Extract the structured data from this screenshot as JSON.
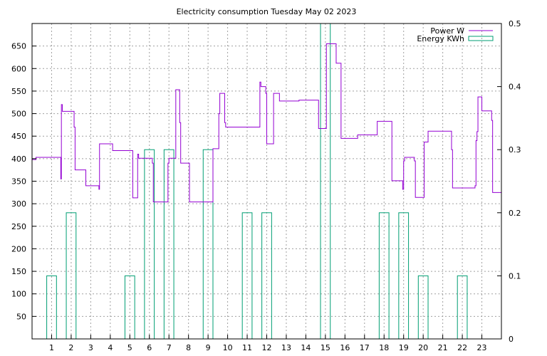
{
  "chart_data": {
    "type": "line",
    "title": "Electricity consumption Tuesday May 02 2023",
    "xlabel": "",
    "ylabel": "",
    "y2label": "",
    "xlim": [
      0,
      24
    ],
    "ylim": [
      0,
      700
    ],
    "y2lim": [
      0,
      0.5
    ],
    "grid": true,
    "legend_position": "top-right",
    "x_ticks": [
      1,
      2,
      3,
      4,
      5,
      6,
      7,
      8,
      9,
      10,
      11,
      12,
      13,
      14,
      15,
      16,
      17,
      18,
      19,
      20,
      21,
      22,
      23
    ],
    "y_ticks": [
      50,
      100,
      150,
      200,
      250,
      300,
      350,
      400,
      450,
      500,
      550,
      600,
      650
    ],
    "y2_ticks": [
      0,
      0.1,
      0.2,
      0.3,
      0.4,
      0.5
    ],
    "series": [
      {
        "name": "Power W",
        "axis": "left",
        "color": "#9400d3",
        "style": "step",
        "points": [
          [
            0,
            398
          ],
          [
            0.2,
            403
          ],
          [
            1.45,
            403
          ],
          [
            1.47,
            355
          ],
          [
            1.5,
            520
          ],
          [
            1.55,
            505
          ],
          [
            2.1,
            505
          ],
          [
            2.15,
            470
          ],
          [
            2.2,
            375
          ],
          [
            2.7,
            375
          ],
          [
            2.75,
            340
          ],
          [
            3.4,
            340
          ],
          [
            3.42,
            332
          ],
          [
            3.45,
            433
          ],
          [
            4.1,
            433
          ],
          [
            4.12,
            418
          ],
          [
            5.1,
            418
          ],
          [
            5.15,
            313
          ],
          [
            5.35,
            313
          ],
          [
            5.4,
            410
          ],
          [
            5.45,
            401
          ],
          [
            6.1,
            401
          ],
          [
            6.15,
            390
          ],
          [
            6.2,
            304
          ],
          [
            6.9,
            304
          ],
          [
            6.95,
            390
          ],
          [
            7.0,
            401
          ],
          [
            7.3,
            401
          ],
          [
            7.35,
            553
          ],
          [
            7.5,
            553
          ],
          [
            7.55,
            480
          ],
          [
            7.6,
            390
          ],
          [
            8.0,
            390
          ],
          [
            8.05,
            304
          ],
          [
            9.2,
            304
          ],
          [
            9.25,
            422
          ],
          [
            9.5,
            422
          ],
          [
            9.55,
            500
          ],
          [
            9.6,
            545
          ],
          [
            9.8,
            545
          ],
          [
            9.85,
            480
          ],
          [
            9.9,
            470
          ],
          [
            11.6,
            470
          ],
          [
            11.65,
            570
          ],
          [
            11.7,
            560
          ],
          [
            11.9,
            560
          ],
          [
            11.95,
            545
          ],
          [
            12.0,
            433
          ],
          [
            12.3,
            433
          ],
          [
            12.35,
            545
          ],
          [
            12.6,
            545
          ],
          [
            12.65,
            528
          ],
          [
            13.6,
            528
          ],
          [
            13.65,
            530
          ],
          [
            14.6,
            530
          ],
          [
            14.65,
            467
          ],
          [
            15.0,
            467
          ],
          [
            15.05,
            655
          ],
          [
            15.5,
            655
          ],
          [
            15.55,
            612
          ],
          [
            15.75,
            612
          ],
          [
            15.8,
            445
          ],
          [
            16.6,
            445
          ],
          [
            16.65,
            453
          ],
          [
            17.6,
            453
          ],
          [
            17.65,
            483
          ],
          [
            18.35,
            483
          ],
          [
            18.4,
            351
          ],
          [
            18.9,
            351
          ],
          [
            18.95,
            332
          ],
          [
            19.0,
            395
          ],
          [
            19.05,
            403
          ],
          [
            19.5,
            403
          ],
          [
            19.55,
            395
          ],
          [
            19.6,
            314
          ],
          [
            20.0,
            314
          ],
          [
            20.05,
            437
          ],
          [
            20.2,
            437
          ],
          [
            20.25,
            461
          ],
          [
            21.4,
            461
          ],
          [
            21.45,
            420
          ],
          [
            21.5,
            335
          ],
          [
            22.6,
            335
          ],
          [
            22.65,
            340
          ],
          [
            22.7,
            440
          ],
          [
            22.75,
            460
          ],
          [
            22.8,
            537
          ],
          [
            22.95,
            537
          ],
          [
            23.0,
            506
          ],
          [
            23.45,
            506
          ],
          [
            23.5,
            485
          ],
          [
            23.55,
            325
          ],
          [
            24.0,
            325
          ]
        ]
      },
      {
        "name": "Energy KWh",
        "axis": "right",
        "color": "#009e73",
        "style": "bars",
        "bar_width": 0.5,
        "x": [
          1,
          2,
          3,
          4,
          5,
          6,
          7,
          8,
          9,
          10,
          11,
          12,
          13,
          14,
          15,
          16,
          17,
          18,
          19,
          20,
          21,
          22,
          23
        ],
        "values": [
          0.1,
          0.2,
          0,
          0,
          0.1,
          0.3,
          0.3,
          0,
          0.3,
          0,
          0.2,
          0.2,
          0,
          0,
          0.5,
          0,
          0,
          0.2,
          0.2,
          0.1,
          0,
          0.1,
          0
        ]
      }
    ]
  }
}
